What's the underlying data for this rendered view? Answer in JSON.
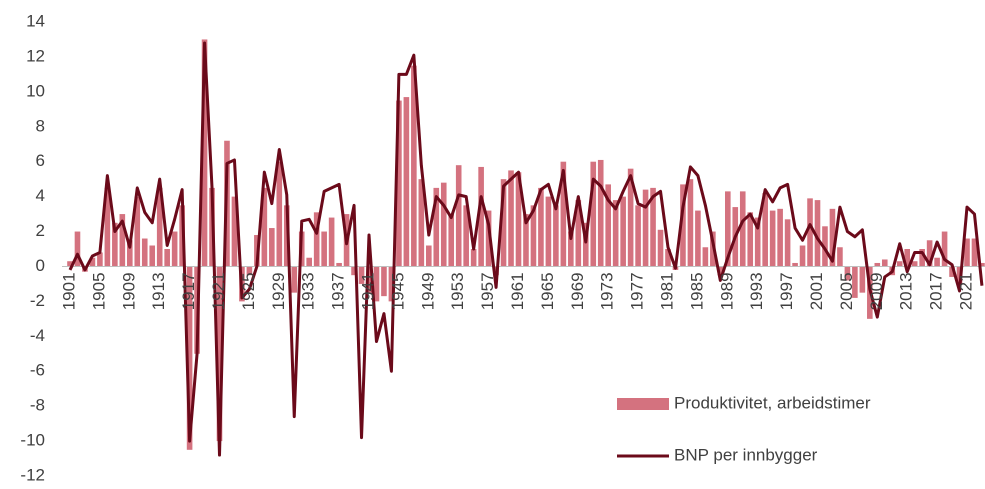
{
  "chart_data": {
    "type": "bar-line",
    "categories": [
      "1901",
      null,
      null,
      null,
      "1905",
      null,
      null,
      null,
      "1909",
      null,
      null,
      null,
      "1913",
      null,
      null,
      null,
      "1917",
      null,
      null,
      null,
      "1921",
      null,
      null,
      null,
      "1925",
      null,
      null,
      null,
      "1929",
      null,
      null,
      null,
      "1933",
      null,
      null,
      null,
      "1937",
      null,
      null,
      null,
      "1941",
      null,
      null,
      null,
      "1945",
      null,
      null,
      null,
      "1949",
      null,
      null,
      null,
      "1953",
      null,
      null,
      null,
      "1957",
      null,
      null,
      null,
      "1961",
      null,
      null,
      null,
      "1965",
      null,
      null,
      null,
      "1969",
      null,
      null,
      null,
      "1973",
      null,
      null,
      null,
      "1977",
      null,
      null,
      null,
      "1981",
      null,
      null,
      null,
      "1985",
      null,
      null,
      null,
      "1989",
      null,
      null,
      null,
      "1993",
      null,
      null,
      null,
      "1997",
      null,
      null,
      null,
      "2001",
      null,
      null,
      null,
      "2005",
      null,
      null,
      null,
      "2009",
      null,
      null,
      null,
      "2013",
      null,
      null,
      null,
      "2017",
      null,
      null,
      null,
      "2021",
      null,
      null
    ],
    "series": [
      {
        "name": "Produktivitet, arbeidstimer",
        "type": "bar",
        "color": "#d4727f",
        "values": [
          0.3,
          2.0,
          -0.3,
          0.5,
          0.8,
          4.5,
          2.5,
          3.0,
          1.5,
          4.0,
          1.6,
          1.2,
          4.5,
          1.0,
          2.0,
          3.5,
          -10.5,
          -5.0,
          13.0,
          4.5,
          -10.0,
          7.2,
          4.0,
          -2.0,
          -0.5,
          1.8,
          4.5,
          2.2,
          6.0,
          3.5,
          -1.5,
          2.0,
          0.5,
          3.1,
          2.0,
          2.8,
          0.2,
          3.0,
          -0.5,
          -1.0,
          -1.5,
          -2.0,
          -1.7,
          -2.0,
          9.5,
          9.7,
          11.5,
          5.0,
          1.2,
          4.5,
          4.8,
          3.0,
          5.8,
          3.5,
          1.0,
          5.7,
          3.2,
          -0.5,
          5.0,
          5.5,
          5.4,
          3.0,
          3.5,
          4.5,
          4.0,
          3.5,
          6.0,
          2.0,
          3.8,
          2.5,
          6.0,
          6.1,
          4.7,
          3.8,
          4.0,
          5.6,
          3.5,
          4.4,
          4.5,
          2.1,
          1.0,
          -0.2,
          4.7,
          5.0,
          3.2,
          1.1,
          2.0,
          -0.5,
          4.3,
          3.4,
          4.3,
          3.1,
          2.8,
          4.2,
          3.2,
          3.3,
          2.7,
          0.2,
          1.2,
          3.9,
          3.8,
          2.3,
          3.3,
          1.1,
          -0.8,
          -1.8,
          -1.5,
          -3.0,
          0.2,
          0.4,
          -0.5,
          0.3,
          1.0,
          0.3,
          1.0,
          1.5,
          0.5,
          2.0,
          -0.6,
          -1.0,
          1.6,
          1.6,
          0.2
        ]
      },
      {
        "name": "BNP per innbygger",
        "type": "line",
        "color": "#6b0a1a",
        "values": [
          -0.2,
          0.7,
          -0.2,
          0.6,
          0.8,
          5.2,
          2.0,
          2.6,
          1.1,
          4.5,
          3.1,
          2.5,
          5.0,
          1.2,
          2.7,
          4.4,
          -10.0,
          -5.0,
          12.8,
          4.5,
          -10.8,
          5.9,
          6.1,
          -1.8,
          -1.3,
          0,
          5.4,
          3.6,
          6.7,
          4.1,
          -8.6,
          2.6,
          2.7,
          1.9,
          4.3,
          4.5,
          4.7,
          1.3,
          3.5,
          -9.8,
          1.8,
          -4.3,
          -2.7,
          -6.0,
          11.0,
          11.0,
          12.1,
          5.8,
          1.8,
          4.0,
          3.5,
          2.8,
          4.1,
          4.0,
          1.0,
          4.0,
          2.4,
          -1.2,
          4.6,
          5.0,
          5.4,
          2.5,
          3.2,
          4.4,
          4.7,
          3.3,
          5.5,
          1.6,
          4.0,
          1.4,
          5.0,
          4.6,
          3.8,
          3.3,
          4.3,
          5.2,
          3.6,
          3.4,
          4.0,
          4.3,
          1.1,
          -0.1,
          3.4,
          5.7,
          5.2,
          3.5,
          1.4,
          -0.8,
          0.5,
          1.7,
          2.6,
          3.0,
          2.2,
          4.4,
          3.7,
          4.5,
          4.7,
          2.2,
          1.5,
          2.4,
          1.6,
          1.0,
          0.3,
          3.4,
          2.0,
          1.7,
          2.1,
          -1.3,
          -2.9,
          -0.6,
          -0.3,
          1.3,
          -0.3,
          0.8,
          0.8,
          0.1,
          1.4,
          0.4,
          0.1,
          -1.4,
          3.4,
          3.0,
          -1.1
        ]
      }
    ],
    "ylim": [
      -12,
      14
    ],
    "yticks": [
      -12,
      -10,
      -8,
      -6,
      -4,
      -2,
      0,
      2,
      4,
      6,
      8,
      10,
      12,
      14
    ],
    "grid": false,
    "legend": "bottom-right"
  }
}
